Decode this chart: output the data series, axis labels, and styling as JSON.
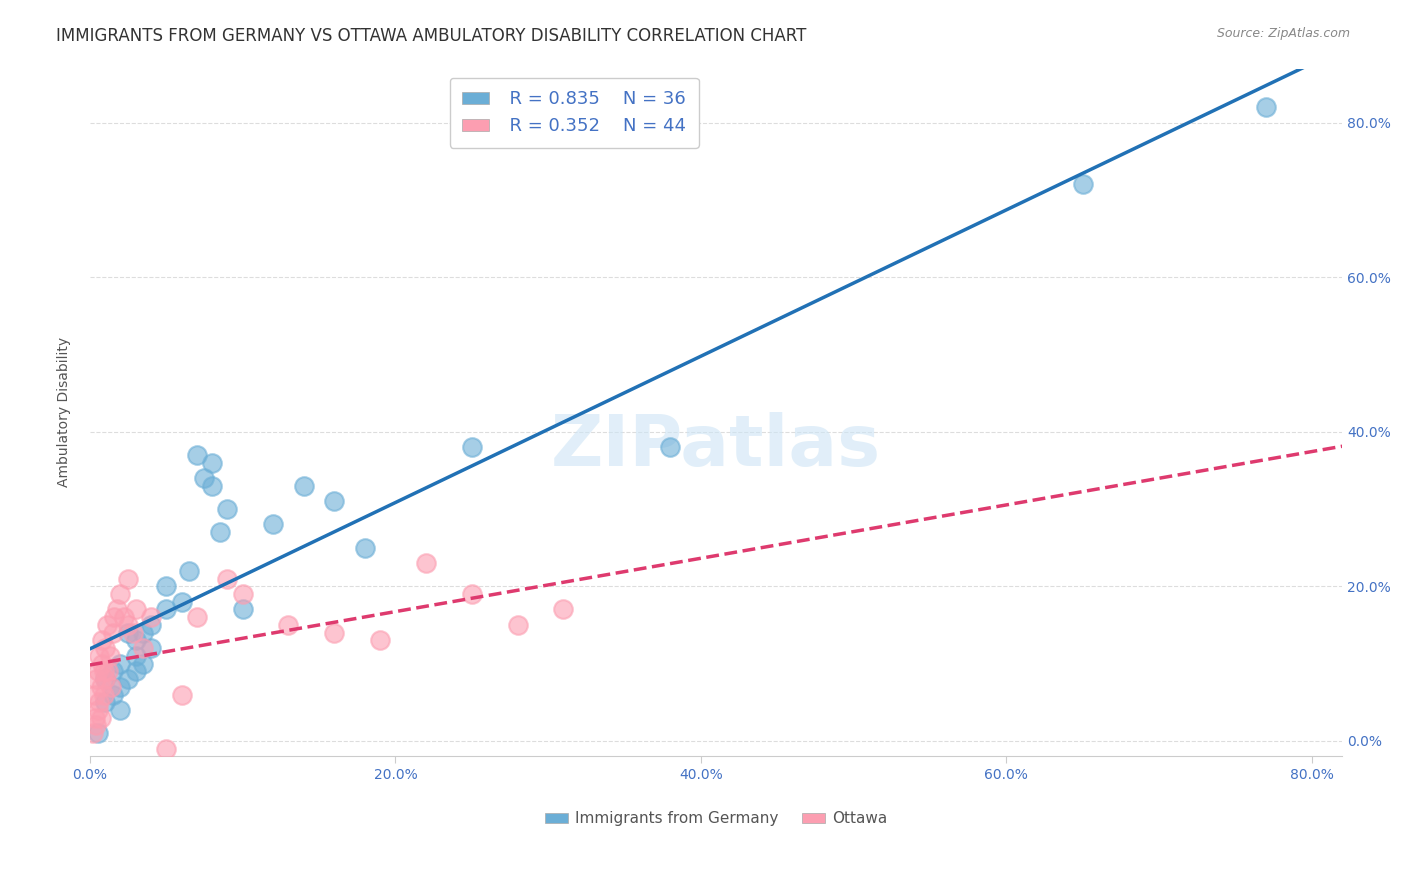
{
  "title": "IMMIGRANTS FROM GERMANY VS OTTAWA AMBULATORY DISABILITY CORRELATION CHART",
  "source": "Source: ZipAtlas.com",
  "ylabel": "Ambulatory Disability",
  "xlim": [
    0.0,
    0.82
  ],
  "ylim": [
    -0.02,
    0.87
  ],
  "legend_labels": [
    "Immigrants from Germany",
    "Ottawa"
  ],
  "blue_R": "R = 0.835",
  "blue_N": "N = 36",
  "pink_R": "R = 0.352",
  "pink_N": "N = 44",
  "blue_color": "#6baed6",
  "pink_color": "#fc9eb1",
  "blue_line_color": "#2171b5",
  "pink_line_color": "#de3a6e",
  "title_fontsize": 12,
  "axis_label_fontsize": 10,
  "tick_fontsize": 10,
  "blue_scatter_x": [
    0.005,
    0.01,
    0.01,
    0.015,
    0.015,
    0.02,
    0.02,
    0.02,
    0.025,
    0.025,
    0.03,
    0.03,
    0.03,
    0.035,
    0.035,
    0.04,
    0.04,
    0.05,
    0.05,
    0.06,
    0.065,
    0.07,
    0.075,
    0.08,
    0.08,
    0.085,
    0.09,
    0.1,
    0.12,
    0.14,
    0.16,
    0.18,
    0.25,
    0.38,
    0.65,
    0.77
  ],
  "blue_scatter_y": [
    0.01,
    0.05,
    0.08,
    0.06,
    0.09,
    0.04,
    0.07,
    0.1,
    0.08,
    0.14,
    0.09,
    0.11,
    0.13,
    0.1,
    0.14,
    0.12,
    0.15,
    0.17,
    0.2,
    0.18,
    0.22,
    0.37,
    0.34,
    0.33,
    0.36,
    0.27,
    0.3,
    0.17,
    0.28,
    0.33,
    0.31,
    0.25,
    0.38,
    0.38,
    0.72,
    0.82
  ],
  "pink_scatter_x": [
    0.002,
    0.003,
    0.003,
    0.004,
    0.004,
    0.005,
    0.005,
    0.006,
    0.006,
    0.007,
    0.007,
    0.008,
    0.008,
    0.009,
    0.009,
    0.01,
    0.01,
    0.011,
    0.012,
    0.013,
    0.014,
    0.015,
    0.016,
    0.018,
    0.02,
    0.022,
    0.025,
    0.025,
    0.028,
    0.03,
    0.035,
    0.04,
    0.05,
    0.06,
    0.07,
    0.09,
    0.1,
    0.13,
    0.16,
    0.19,
    0.22,
    0.25,
    0.28,
    0.31
  ],
  "pink_scatter_y": [
    0.01,
    0.03,
    0.06,
    0.02,
    0.08,
    0.04,
    0.09,
    0.05,
    0.11,
    0.03,
    0.07,
    0.1,
    0.13,
    0.06,
    0.09,
    0.08,
    0.12,
    0.15,
    0.09,
    0.11,
    0.07,
    0.14,
    0.16,
    0.17,
    0.19,
    0.16,
    0.15,
    0.21,
    0.14,
    0.17,
    0.12,
    0.16,
    -0.01,
    0.06,
    0.16,
    0.21,
    0.19,
    0.15,
    0.14,
    0.13,
    0.23,
    0.19,
    0.15,
    0.17
  ],
  "watermark": "ZIPatlas",
  "background_color": "#ffffff",
  "grid_color": "#dddddd"
}
